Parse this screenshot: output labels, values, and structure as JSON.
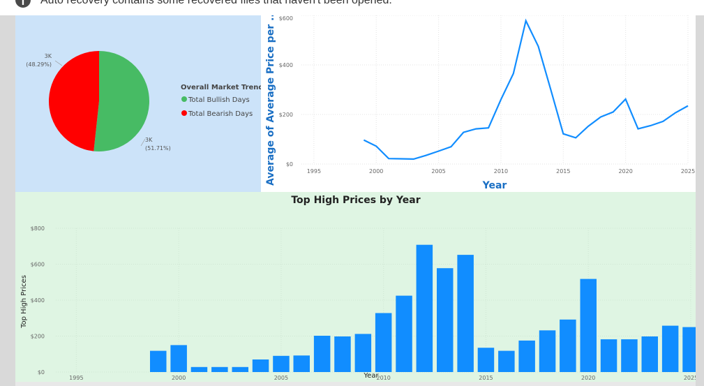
{
  "notification": {
    "text": "Auto recovery contains some recovered files that haven't been opened.",
    "icon": "info-icon"
  },
  "colors": {
    "bullish": "#47bb64",
    "bearish": "#ff0000",
    "line": "#118dff",
    "bar": "#118dff",
    "pie_bg": "#cce3f9",
    "bar_bg": "#dff5e3"
  },
  "chart_data": [
    {
      "type": "pie",
      "legend_title": "Overall Market Trend",
      "legend_position": "right",
      "slices": [
        {
          "name": "Total Bullish Days",
          "percent": 51.71,
          "label": "3K",
          "pct_label": "(51.71%)"
        },
        {
          "name": "Total Bearish Days",
          "percent": 48.29,
          "label": "3K",
          "pct_label": "(48.29%)"
        }
      ]
    },
    {
      "type": "line",
      "xlabel": "Year",
      "ylabel": "Average of Average Price per ...",
      "xlim": [
        1994,
        2025
      ],
      "ylim": [
        0,
        600
      ],
      "x_ticks": [
        "1995",
        "2000",
        "2005",
        "2010",
        "2015",
        "2020",
        "2025"
      ],
      "y_ticks": [
        "$0",
        "$200",
        "$400",
        "$600"
      ],
      "x": [
        1999,
        2000,
        2001,
        2002,
        2003,
        2004,
        2005,
        2006,
        2007,
        2008,
        2009,
        2010,
        2011,
        2012,
        2013,
        2014,
        2015,
        2016,
        2017,
        2018,
        2019,
        2020,
        2021,
        2022,
        2023,
        2024,
        2025
      ],
      "values": [
        97,
        72,
        22,
        21,
        20,
        35,
        52,
        70,
        128,
        142,
        146,
        260,
        365,
        578,
        475,
        300,
        122,
        106,
        152,
        190,
        210,
        262,
        142,
        155,
        172,
        207,
        235
      ]
    },
    {
      "type": "bar",
      "title": "Top High Prices by Year",
      "xlabel": "Year",
      "ylabel": "Top High Prices",
      "xlim": [
        1994,
        2025
      ],
      "ylim": [
        0,
        800
      ],
      "x_ticks": [
        "1995",
        "2000",
        "2005",
        "2010",
        "2015",
        "2020",
        "2025"
      ],
      "y_ticks": [
        "$0",
        "$200",
        "$400",
        "$600",
        "$800"
      ],
      "categories": [
        1999,
        2000,
        2001,
        2002,
        2003,
        2004,
        2005,
        2006,
        2007,
        2008,
        2009,
        2010,
        2011,
        2012,
        2013,
        2014,
        2015,
        2016,
        2017,
        2018,
        2019,
        2020,
        2021,
        2022,
        2023,
        2024,
        2025
      ],
      "values": [
        118,
        150,
        28,
        28,
        28,
        70,
        90,
        92,
        202,
        198,
        212,
        328,
        425,
        708,
        578,
        652,
        135,
        118,
        175,
        232,
        292,
        518,
        182,
        182,
        198,
        258,
        250
      ]
    }
  ]
}
